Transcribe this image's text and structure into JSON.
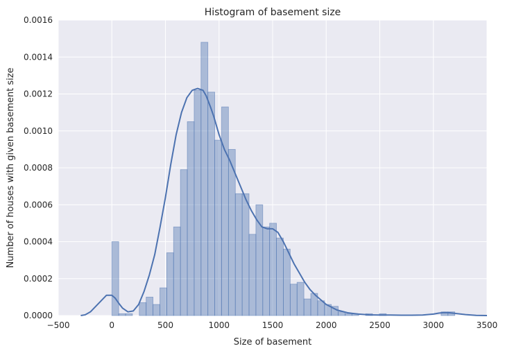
{
  "chart_data": {
    "type": "bar",
    "title": "Histogram of basement size",
    "xlabel": "Size of basement",
    "ylabel": "Number of houses with given basement size",
    "xlim": [
      -500,
      3500
    ],
    "ylim": [
      0,
      0.0016
    ],
    "xticks": [
      "−500",
      "0",
      "500",
      "1000",
      "1500",
      "2000",
      "2500",
      "3000",
      "3500"
    ],
    "yticks": [
      "0.0000",
      "0.0002",
      "0.0004",
      "0.0006",
      "0.0008",
      "0.0010",
      "0.0012",
      "0.0014",
      "0.0016"
    ],
    "grid": true,
    "bins": {
      "start": 0,
      "width": 64,
      "values": [
        0.0004,
        1e-05,
        1e-05,
        0.0,
        7e-05,
        0.0001,
        6e-05,
        0.00015,
        0.00034,
        0.00048,
        0.00079,
        0.00105,
        0.00122,
        0.00148,
        0.00121,
        0.00095,
        0.00113,
        0.0009,
        0.00066,
        0.00066,
        0.00044,
        0.0006,
        0.00048,
        0.0005,
        0.00042,
        0.00036,
        0.00017,
        0.00018,
        9e-05,
        0.00012,
        8e-05,
        6e-05,
        5e-05,
        2e-05,
        1e-05,
        1e-05,
        0.0,
        1e-05,
        0.0,
        1e-05,
        0.0,
        0.0,
        0.0,
        0.0,
        0.0,
        0.0,
        0.0,
        0.0,
        2e-05,
        2e-05
      ]
    },
    "kde": {
      "x": [
        -290,
        -250,
        -200,
        -150,
        -100,
        -50,
        0,
        30,
        60,
        100,
        150,
        200,
        250,
        300,
        350,
        400,
        450,
        500,
        550,
        600,
        650,
        700,
        750,
        800,
        850,
        880,
        920,
        950,
        1000,
        1050,
        1100,
        1150,
        1200,
        1250,
        1300,
        1350,
        1400,
        1450,
        1500,
        1550,
        1600,
        1650,
        1700,
        1750,
        1800,
        1850,
        1900,
        1950,
        2000,
        2100,
        2200,
        2300,
        2400,
        2500,
        2600,
        2700,
        2800,
        2900,
        3000,
        3050,
        3100,
        3150,
        3200,
        3300,
        3400,
        3500
      ],
      "y": [
        0.0,
        4e-06,
        2e-05,
        5e-05,
        8e-05,
        0.00011,
        0.00011,
        9.5e-05,
        7e-05,
        4e-05,
        2e-05,
        2.5e-05,
        6e-05,
        0.00013,
        0.00022,
        0.00033,
        0.00048,
        0.00064,
        0.00082,
        0.00098,
        0.0011,
        0.00118,
        0.00122,
        0.00123,
        0.00122,
        0.00119,
        0.00113,
        0.00108,
        0.00098,
        0.0009,
        0.00084,
        0.00077,
        0.0007,
        0.00063,
        0.00057,
        0.00052,
        0.00048,
        0.00047,
        0.00047,
        0.00045,
        0.0004,
        0.00034,
        0.00028,
        0.00023,
        0.00018,
        0.00014,
        0.00011,
        8.5e-05,
        6e-05,
        3e-05,
        1.5e-05,
        8e-06,
        4e-06,
        3e-06,
        3e-06,
        2e-06,
        2e-06,
        3e-06,
        8e-06,
        1.3e-05,
        1.6e-05,
        1.5e-05,
        1.2e-05,
        5e-06,
        1e-06,
        0.0
      ]
    },
    "colors": {
      "background": "#eaeaf2",
      "grid": "#ffffff",
      "bar_fill": "#4c72b0",
      "bar_opacity": 0.4,
      "line": "#4c72b0"
    }
  }
}
